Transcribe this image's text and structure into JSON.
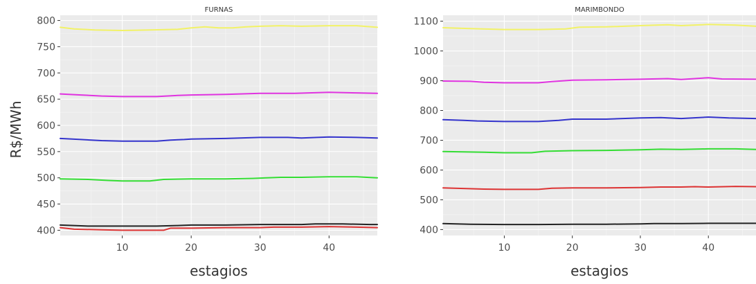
{
  "figure": {
    "shared_ylabel": "R$/MWh"
  },
  "chart_data": [
    {
      "type": "line",
      "title": "FURNAS",
      "xlabel": "estagios",
      "ylabel": "R$/MWh",
      "xlim": [
        1,
        47
      ],
      "ylim": [
        390,
        810
      ],
      "x_ticks": [
        10,
        20,
        30,
        40
      ],
      "y_ticks": [
        400,
        450,
        500,
        550,
        600,
        650,
        700,
        750,
        800
      ],
      "grid": true,
      "background": "#ebebeb",
      "series": [
        {
          "color": "#f2f266",
          "points": [
            [
              1,
              787
            ],
            [
              3,
              784
            ],
            [
              6,
              782
            ],
            [
              10,
              781
            ],
            [
              14,
              782
            ],
            [
              18,
              783
            ],
            [
              20,
              786
            ],
            [
              22,
              788
            ],
            [
              24,
              786
            ],
            [
              26,
              786
            ],
            [
              28,
              788
            ],
            [
              30,
              789
            ],
            [
              33,
              790
            ],
            [
              36,
              789
            ],
            [
              40,
              790
            ],
            [
              44,
              790
            ],
            [
              47,
              787
            ]
          ]
        },
        {
          "color": "#e033e0",
          "points": [
            [
              1,
              660
            ],
            [
              4,
              658
            ],
            [
              7,
              656
            ],
            [
              10,
              655
            ],
            [
              15,
              655
            ],
            [
              18,
              657
            ],
            [
              20,
              658
            ],
            [
              25,
              659
            ],
            [
              30,
              661
            ],
            [
              35,
              661
            ],
            [
              40,
              663
            ],
            [
              44,
              662
            ],
            [
              47,
              661
            ]
          ]
        },
        {
          "color": "#3333cc",
          "points": [
            [
              1,
              575
            ],
            [
              4,
              573
            ],
            [
              7,
              571
            ],
            [
              10,
              570
            ],
            [
              15,
              570
            ],
            [
              17,
              572
            ],
            [
              19,
              573
            ],
            [
              20,
              574
            ],
            [
              25,
              575
            ],
            [
              30,
              577
            ],
            [
              34,
              577
            ],
            [
              36,
              576
            ],
            [
              40,
              578
            ],
            [
              44,
              577
            ],
            [
              47,
              576
            ]
          ]
        },
        {
          "color": "#33dd33",
          "points": [
            [
              1,
              498
            ],
            [
              5,
              497
            ],
            [
              8,
              495
            ],
            [
              10,
              494
            ],
            [
              14,
              494
            ],
            [
              16,
              497
            ],
            [
              20,
              498
            ],
            [
              25,
              498
            ],
            [
              29,
              499
            ],
            [
              33,
              501
            ],
            [
              36,
              501
            ],
            [
              40,
              502
            ],
            [
              44,
              502
            ],
            [
              47,
              500
            ]
          ]
        },
        {
          "color": "#222222",
          "points": [
            [
              1,
              410
            ],
            [
              5,
              408
            ],
            [
              10,
              408
            ],
            [
              15,
              408
            ],
            [
              18,
              409
            ],
            [
              20,
              410
            ],
            [
              25,
              410
            ],
            [
              30,
              411
            ],
            [
              32,
              411
            ],
            [
              36,
              411
            ],
            [
              38,
              412
            ],
            [
              42,
              412
            ],
            [
              46,
              411
            ],
            [
              47,
              411
            ]
          ]
        },
        {
          "color": "#dd3333",
          "points": [
            [
              1,
              405
            ],
            [
              3,
              402
            ],
            [
              7,
              401
            ],
            [
              10,
              400
            ],
            [
              15,
              400
            ],
            [
              16,
              400
            ],
            [
              17,
              404
            ],
            [
              20,
              404
            ],
            [
              25,
              405
            ],
            [
              30,
              405
            ],
            [
              32,
              406
            ],
            [
              36,
              406
            ],
            [
              40,
              407
            ],
            [
              44,
              406
            ],
            [
              47,
              405
            ]
          ]
        }
      ]
    },
    {
      "type": "line",
      "title": "MARIMBONDO",
      "xlabel": "estagios",
      "ylabel": "",
      "xlim": [
        1,
        47
      ],
      "ylim": [
        380,
        1120
      ],
      "x_ticks": [
        10,
        20,
        30,
        40
      ],
      "y_ticks": [
        400,
        500,
        600,
        700,
        800,
        900,
        1000,
        1100
      ],
      "grid": true,
      "background": "#ebebeb",
      "series": [
        {
          "color": "#f2f266",
          "points": [
            [
              1,
              1078
            ],
            [
              5,
              1075
            ],
            [
              10,
              1072
            ],
            [
              15,
              1072
            ],
            [
              19,
              1074
            ],
            [
              21,
              1080
            ],
            [
              25,
              1081
            ],
            [
              30,
              1085
            ],
            [
              34,
              1088
            ],
            [
              36,
              1085
            ],
            [
              40,
              1089
            ],
            [
              44,
              1087
            ],
            [
              47,
              1083
            ]
          ]
        },
        {
          "color": "#e033e0",
          "points": [
            [
              1,
              899
            ],
            [
              5,
              898
            ],
            [
              7,
              895
            ],
            [
              10,
              893
            ],
            [
              15,
              893
            ],
            [
              17,
              897
            ],
            [
              20,
              902
            ],
            [
              25,
              903
            ],
            [
              30,
              905
            ],
            [
              34,
              907
            ],
            [
              36,
              904
            ],
            [
              40,
              910
            ],
            [
              42,
              906
            ],
            [
              47,
              905
            ]
          ]
        },
        {
          "color": "#3333cc",
          "points": [
            [
              1,
              769
            ],
            [
              4,
              767
            ],
            [
              6,
              765
            ],
            [
              10,
              763
            ],
            [
              15,
              763
            ],
            [
              18,
              767
            ],
            [
              20,
              771
            ],
            [
              25,
              771
            ],
            [
              30,
              775
            ],
            [
              33,
              776
            ],
            [
              36,
              773
            ],
            [
              40,
              778
            ],
            [
              43,
              775
            ],
            [
              47,
              773
            ]
          ]
        },
        {
          "color": "#33dd33",
          "points": [
            [
              1,
              662
            ],
            [
              4,
              661
            ],
            [
              7,
              660
            ],
            [
              10,
              658
            ],
            [
              14,
              658
            ],
            [
              16,
              663
            ],
            [
              20,
              665
            ],
            [
              25,
              666
            ],
            [
              30,
              668
            ],
            [
              33,
              670
            ],
            [
              36,
              669
            ],
            [
              40,
              671
            ],
            [
              44,
              671
            ],
            [
              47,
              669
            ]
          ]
        },
        {
          "color": "#dd3333",
          "points": [
            [
              1,
              540
            ],
            [
              4,
              538
            ],
            [
              7,
              536
            ],
            [
              10,
              535
            ],
            [
              15,
              535
            ],
            [
              17,
              539
            ],
            [
              20,
              540
            ],
            [
              25,
              540
            ],
            [
              30,
              541
            ],
            [
              33,
              543
            ],
            [
              36,
              543
            ],
            [
              38,
              544
            ],
            [
              40,
              543
            ],
            [
              44,
              545
            ],
            [
              47,
              544
            ]
          ]
        },
        {
          "color": "#222222",
          "points": [
            [
              1,
              420
            ],
            [
              5,
              418
            ],
            [
              10,
              417
            ],
            [
              15,
              417
            ],
            [
              20,
              418
            ],
            [
              25,
              418
            ],
            [
              30,
              419
            ],
            [
              32,
              420
            ],
            [
              36,
              420
            ],
            [
              40,
              421
            ],
            [
              44,
              421
            ],
            [
              47,
              421
            ]
          ]
        }
      ]
    }
  ]
}
